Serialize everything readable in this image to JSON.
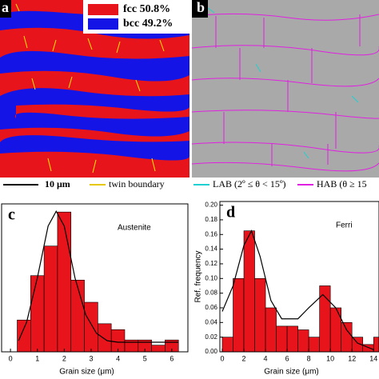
{
  "panel_a": {
    "label": "a",
    "legend": [
      "fcc  50.8%",
      "bcc  49.2%"
    ],
    "scale_bar": "10 μm",
    "twin": "twin boundary"
  },
  "panel_b": {
    "label": "b",
    "lab": "LAB (2º ≤ θ < 15º)",
    "hab": "HAB (θ ≥ 15"
  },
  "chart_data": [
    {
      "type": "histogram",
      "panel_label": "c",
      "annotation": "Austenite",
      "xlabel": "Grain size (μm)",
      "bins": [
        0.25,
        0.75,
        1.25,
        1.75,
        2.25,
        2.75,
        3.25,
        3.75,
        4.25,
        4.75,
        5.25,
        5.75,
        6.25
      ],
      "values": [
        0.043,
        0.103,
        0.143,
        0.189,
        0.097,
        0.067,
        0.038,
        0.03,
        0.016,
        0.016,
        0.009,
        0.016
      ],
      "color": "#e8141c",
      "fit": {
        "x": [
          0.3,
          0.6,
          1.0,
          1.4,
          1.7,
          2.0,
          2.4,
          2.8,
          3.2,
          3.6,
          4.0,
          6.25
        ],
        "y": [
          0.015,
          0.04,
          0.1,
          0.17,
          0.19,
          0.17,
          0.1,
          0.05,
          0.025,
          0.015,
          0.013,
          0.013
        ]
      },
      "xlim": [
        -0.33,
        6.6
      ],
      "ylim": [
        0,
        0.2
      ],
      "xticks": [
        0,
        1,
        2,
        3,
        4,
        5,
        6
      ]
    },
    {
      "type": "histogram",
      "panel_label": "d",
      "annotation": "Ferri",
      "xlabel": "Grain size (μm)",
      "ylabel": "Ref. frequency",
      "bins": [
        0,
        1,
        2,
        3,
        4,
        5,
        6,
        7,
        8,
        9,
        10,
        11,
        12,
        13,
        14,
        15
      ],
      "values": [
        0.02,
        0.1,
        0.165,
        0.1,
        0.06,
        0.035,
        0.035,
        0.03,
        0.02,
        0.09,
        0.06,
        0.04,
        0.02,
        0.01,
        0.02
      ],
      "color": "#e8141c",
      "fit": {
        "x": [
          0,
          1,
          2,
          2.7,
          3.5,
          4.5,
          5.5,
          7,
          8,
          9.3,
          10.5,
          11.5,
          12.5,
          14
        ],
        "y": [
          0.055,
          0.09,
          0.145,
          0.165,
          0.13,
          0.07,
          0.045,
          0.045,
          0.06,
          0.078,
          0.06,
          0.03,
          0.012,
          0.003
        ]
      },
      "xlim": [
        -0.22,
        14.5
      ],
      "ylim": [
        0,
        0.205
      ],
      "xticks": [
        0,
        2,
        4,
        6,
        8,
        10,
        12,
        14
      ],
      "yticks": [
        {
          "value": 0,
          "label": "0.00"
        },
        {
          "value": 0.02,
          "label": "0.02"
        },
        {
          "value": 0.04,
          "label": "0.04"
        },
        {
          "value": 0.06,
          "label": "0.06"
        },
        {
          "value": 0.08,
          "label": "0.08"
        },
        {
          "value": 0.1,
          "label": "0.10"
        },
        {
          "value": 0.12,
          "label": "0.12"
        },
        {
          "value": 0.14,
          "label": "0.14"
        },
        {
          "value": 0.16,
          "label": "0.16"
        },
        {
          "value": 0.18,
          "label": "0.18"
        },
        {
          "value": 0.2,
          "label": "0.20"
        }
      ]
    }
  ]
}
